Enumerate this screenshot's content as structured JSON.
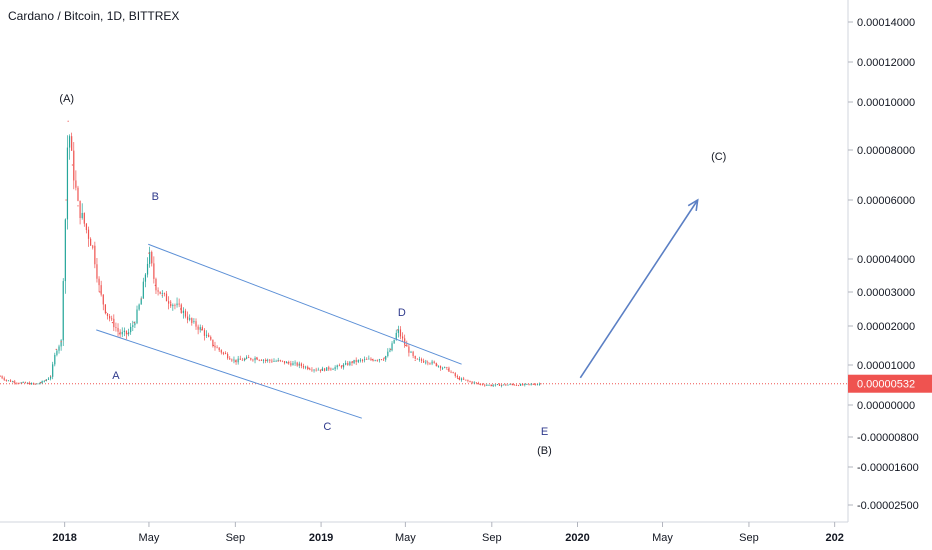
{
  "chart_data": {
    "type": "line",
    "title": "Cardano / Bitcoin, 1D, BITTREX",
    "xlabel": "",
    "ylabel": "",
    "x_tick_labels": [
      "2018",
      "May",
      "Sep",
      "2019",
      "May",
      "Sep",
      "2020",
      "May",
      "Sep",
      "202"
    ],
    "y_tick_labels": [
      "0.00014000",
      "0.00012000",
      "0.00010000",
      "0.00008000",
      "0.00006000",
      "0.00004000",
      "0.00003000",
      "0.00002000",
      "0.00001000",
      "0.00000000",
      "-0.00000800",
      "-0.00001600",
      "-0.00002500"
    ],
    "current_price": "0.00000532",
    "x_range": [
      "2017-10-01",
      "2021-01-20"
    ],
    "grid": false,
    "colors": {
      "up_candle": "#26a69a",
      "down_candle": "#ef5350",
      "trendline": "#5b8fd6",
      "arrow": "#5b7fc4",
      "price_line": "#ef5350",
      "price_tag": "#ef5350",
      "wave_label_blue": "#2f3a8c",
      "wave_label_dark": "#131722"
    },
    "series": [
      {
        "x": [
          "2017-10-01",
          "2017-10-10",
          "2017-10-20",
          "2017-11-01",
          "2017-11-10",
          "2017-11-20",
          "2017-11-28",
          "2017-12-05",
          "2017-12-12",
          "2017-12-20",
          "2017-12-27",
          "2018-01-03",
          "2018-01-06",
          "2018-01-12",
          "2018-01-20",
          "2018-02-01",
          "2018-02-10",
          "2018-02-20",
          "2018-03-01",
          "2018-03-10",
          "2018-03-20",
          "2018-04-01",
          "2018-04-10",
          "2018-04-20",
          "2018-05-01",
          "2018-05-10",
          "2018-05-20",
          "2018-06-01",
          "2018-06-15",
          "2018-07-01",
          "2018-07-15",
          "2018-08-01",
          "2018-08-15",
          "2018-09-01",
          "2018-09-15",
          "2018-10-01",
          "2018-10-15",
          "2018-11-01",
          "2018-11-15",
          "2018-12-01",
          "2018-12-15",
          "2019-01-01",
          "2019-01-15",
          "2019-02-01",
          "2019-02-15",
          "2019-03-01",
          "2019-03-15",
          "2019-04-01",
          "2019-04-10",
          "2019-04-20",
          "2019-05-01",
          "2019-05-15",
          "2019-06-01",
          "2019-06-15",
          "2019-07-01",
          "2019-07-15",
          "2019-08-01",
          "2019-08-15",
          "2019-09-01",
          "2019-09-15",
          "2019-10-01",
          "2019-10-15",
          "2019-11-01",
          "2019-11-10"
        ],
        "y": [
          7.2e-06,
          6.2e-06,
          5.8e-06,
          5.5e-06,
          5.4e-06,
          5.2e-06,
          5.6e-06,
          6.2e-06,
          7.2e-06,
          1.4e-05,
          1.6e-05,
          6e-05,
          9.2e-05,
          7.4e-05,
          5.8e-05,
          5e-05,
          4.4e-05,
          3e-05,
          2.4e-05,
          2.1e-05,
          1.8e-05,
          1.8e-05,
          2.1e-05,
          2.8e-05,
          4.2e-05,
          3.2e-05,
          2.9e-05,
          2.7e-05,
          2.5e-05,
          2.1e-05,
          1.9e-05,
          1.5e-05,
          1.3e-05,
          1.1e-05,
          1.15e-05,
          1.18e-05,
          1.12e-05,
          1.1e-05,
          1.05e-05,
          1e-05,
          9.2e-06,
          8.8e-06,
          9.2e-06,
          9.8e-06,
          1.08e-05,
          1.12e-05,
          1.14e-05,
          1.18e-05,
          1.4e-05,
          1.9e-05,
          1.5e-05,
          1.12e-05,
          1.1e-05,
          1e-05,
          8.8e-06,
          6.6e-06,
          5.8e-06,
          5.2e-06,
          4.9e-06,
          5e-06,
          5.1e-06,
          5e-06,
          5.2e-06,
          5.3e-06
        ]
      }
    ],
    "annotations": [
      {
        "text": "(A)",
        "x": "2018-01-04",
        "y": 0.0001
      },
      {
        "text": "B",
        "x": "2018-05-10",
        "y": 6e-05
      },
      {
        "text": "A",
        "x": "2018-03-15",
        "y": 6.5e-06
      },
      {
        "text": "C",
        "x": "2019-01-10",
        "y": -6.2e-06
      },
      {
        "text": "D",
        "x": "2019-04-26",
        "y": 2.3e-05
      },
      {
        "text": "E",
        "x": "2019-11-15",
        "y": -7.5e-06
      },
      {
        "text": "(B)",
        "x": "2019-11-15",
        "y": -1.25e-05
      },
      {
        "text": "(C)",
        "x": "2020-07-20",
        "y": 7.6e-05
      }
    ],
    "trendlines": [
      {
        "from": {
          "x": "2018-04-30",
          "y": 4.5e-05
        },
        "to": {
          "x": "2019-07-20",
          "y": 1.02e-05
        }
      },
      {
        "from": {
          "x": "2018-02-15",
          "y": 1.9e-05
        },
        "to": {
          "x": "2019-02-28",
          "y": -3.3e-06
        }
      }
    ],
    "arrow": {
      "from": {
        "x": "2020-01-05",
        "y": 6.8e-06
      },
      "to": {
        "x": "2020-06-20",
        "y": 6e-05
      }
    }
  }
}
